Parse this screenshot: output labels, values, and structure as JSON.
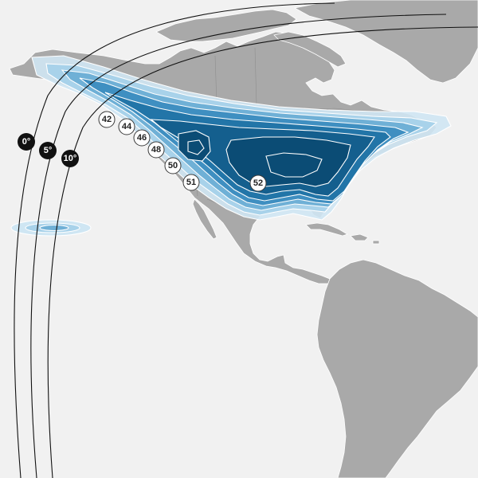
{
  "colors": {
    "background": "#f1f1f1",
    "land": "#a9a9a9",
    "coverage_levels": [
      "#cfe6f3",
      "#a8d2ea",
      "#6fb0d6",
      "#3f8fc1",
      "#2275a8",
      "#145f8e",
      "#0b4c75"
    ],
    "elevation_lines": "#111111"
  },
  "coverage_levels_dBW": [
    "42",
    "44",
    "46",
    "48",
    "50",
    "51",
    "52"
  ],
  "elevation_angles": [
    "0°",
    "5°",
    "10°"
  ],
  "icons": {
    "level_marker": "white-circle-badge",
    "elevation_marker": "black-circle-badge"
  }
}
